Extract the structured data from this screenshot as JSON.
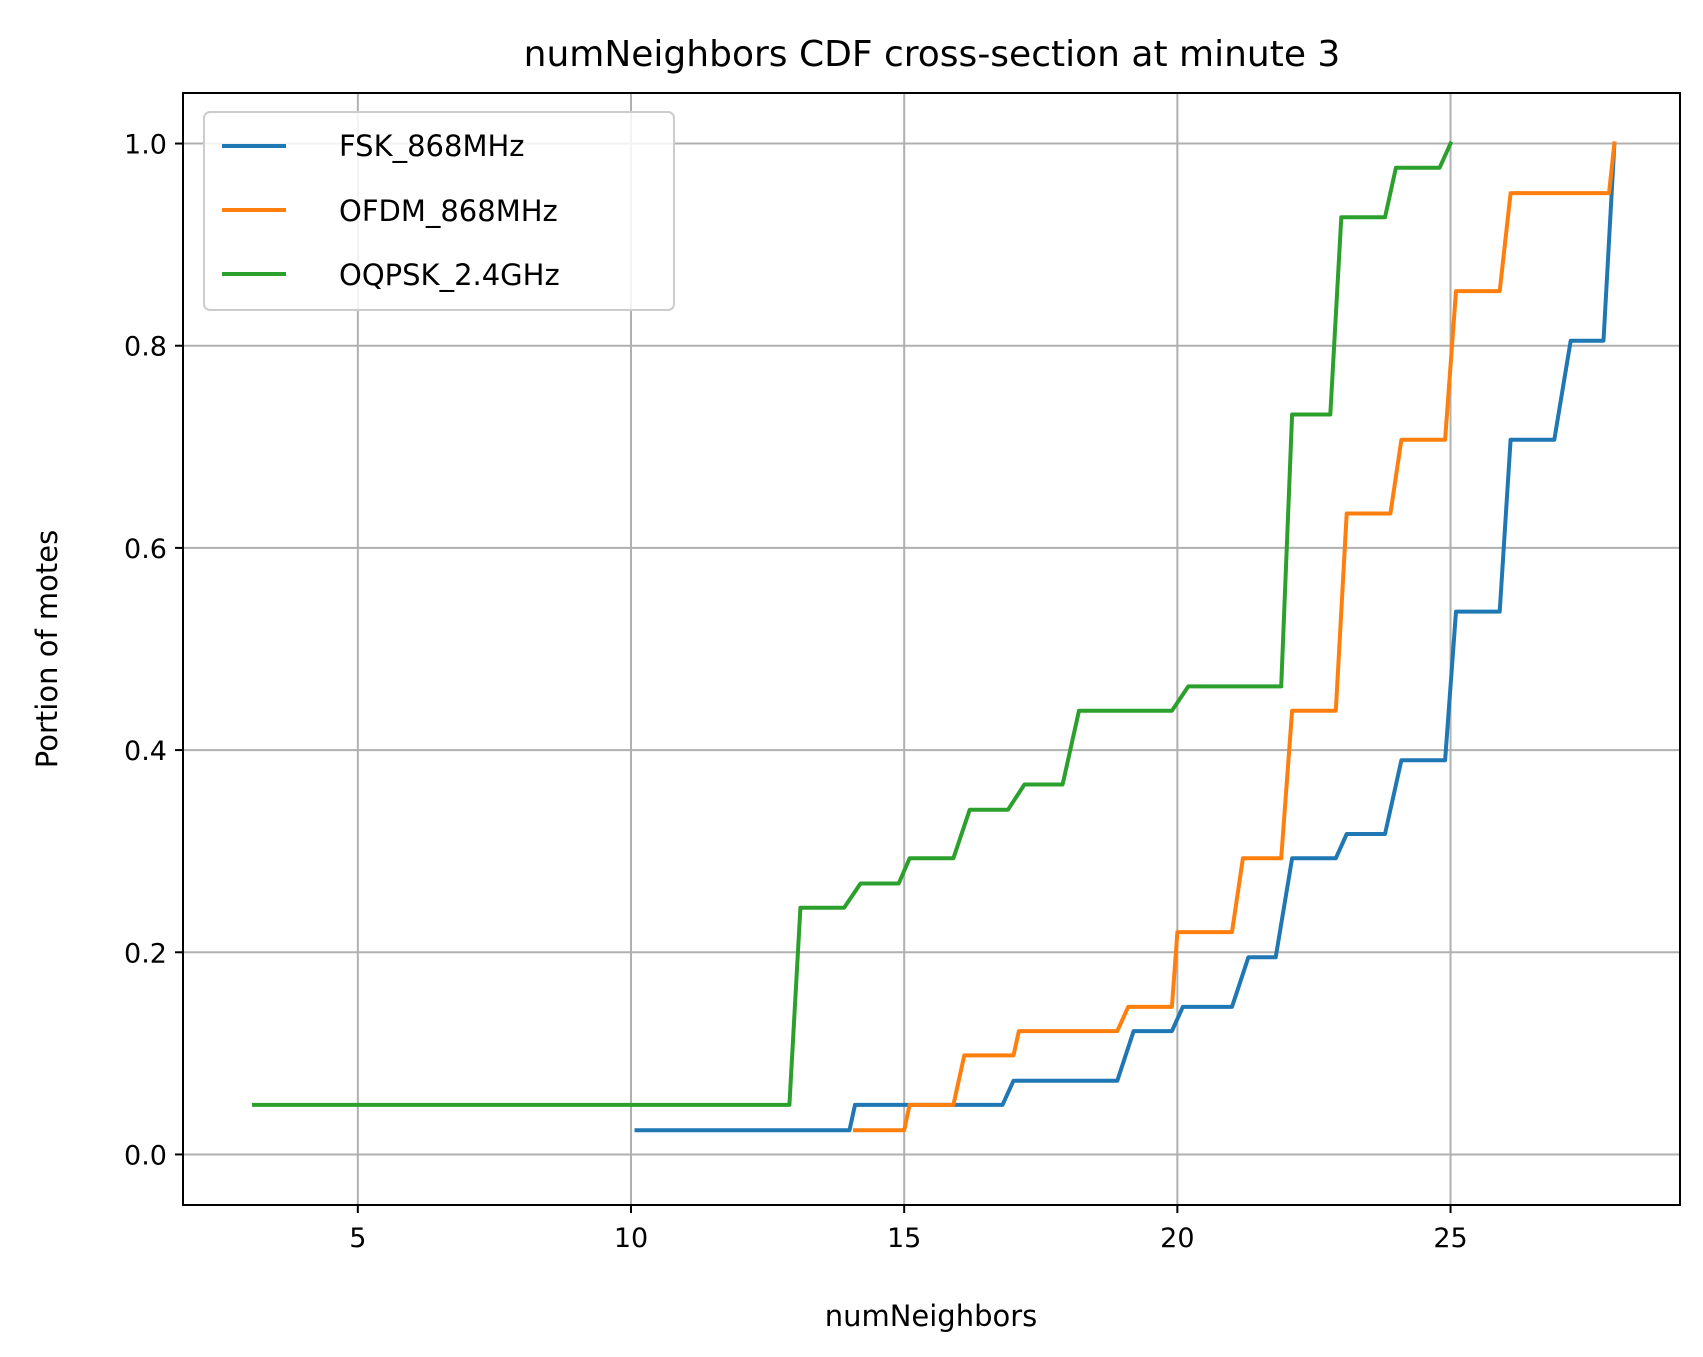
{
  "chart_data": {
    "type": "line",
    "title": "numNeighbors CDF cross-section at minute 3",
    "xlabel": "numNeighbors",
    "ylabel": "Portion of motes",
    "xlim": [
      1.8,
      29.2
    ],
    "ylim": [
      -0.05,
      1.05
    ],
    "xticks": [
      5,
      10,
      15,
      20,
      25
    ],
    "xtick_labels": [
      "5",
      "10",
      "15",
      "20",
      "25"
    ],
    "yticks": [
      0.0,
      0.2,
      0.4,
      0.6,
      0.8,
      1.0
    ],
    "ytick_labels": [
      "0.0",
      "0.2",
      "0.4",
      "0.6",
      "0.8",
      "1.0"
    ],
    "grid": true,
    "legend_position": "upper-left",
    "series": [
      {
        "name": "FSK_868MHz",
        "color": "#1f77b4",
        "x": [
          10.1,
          14.0,
          14.1,
          16.0,
          16.8,
          17.0,
          18.0,
          18.9,
          19.2,
          19.9,
          20.1,
          21.0,
          21.3,
          21.8,
          22.1,
          22.9,
          23.1,
          23.8,
          24.1,
          24.9,
          25.1,
          25.9,
          26.1,
          26.9,
          27.2,
          27.8,
          28.0
        ],
        "y": [
          0.024,
          0.024,
          0.049,
          0.049,
          0.049,
          0.073,
          0.073,
          0.073,
          0.122,
          0.122,
          0.146,
          0.146,
          0.195,
          0.195,
          0.293,
          0.293,
          0.317,
          0.317,
          0.39,
          0.39,
          0.537,
          0.537,
          0.707,
          0.707,
          0.805,
          0.805,
          1.0
        ]
      },
      {
        "name": "OFDM_868MHz",
        "color": "#ff7f0e",
        "x": [
          14.1,
          15.0,
          15.1,
          15.9,
          16.1,
          17.0,
          17.1,
          18.0,
          18.9,
          19.1,
          19.9,
          20.0,
          21.0,
          21.2,
          21.9,
          22.1,
          22.9,
          23.1,
          23.9,
          24.1,
          24.9,
          25.1,
          25.9,
          26.1,
          27.0,
          27.9,
          28.0
        ],
        "y": [
          0.024,
          0.024,
          0.049,
          0.049,
          0.098,
          0.098,
          0.122,
          0.122,
          0.122,
          0.146,
          0.146,
          0.22,
          0.22,
          0.293,
          0.293,
          0.439,
          0.439,
          0.634,
          0.634,
          0.707,
          0.707,
          0.854,
          0.854,
          0.951,
          0.951,
          0.951,
          1.0
        ]
      },
      {
        "name": "OQPSK_2.4GHz",
        "color": "#2ca02c",
        "x": [
          3.1,
          12.9,
          13.1,
          13.9,
          14.2,
          14.9,
          15.1,
          15.9,
          16.2,
          16.9,
          17.2,
          17.9,
          18.2,
          19.9,
          20.2,
          21.9,
          22.1,
          22.8,
          23.0,
          23.8,
          24.0,
          24.8,
          25.0
        ],
        "y": [
          0.049,
          0.049,
          0.244,
          0.244,
          0.268,
          0.268,
          0.293,
          0.293,
          0.341,
          0.341,
          0.366,
          0.366,
          0.439,
          0.439,
          0.463,
          0.463,
          0.732,
          0.732,
          0.927,
          0.927,
          0.976,
          0.976,
          1.0
        ]
      }
    ]
  }
}
